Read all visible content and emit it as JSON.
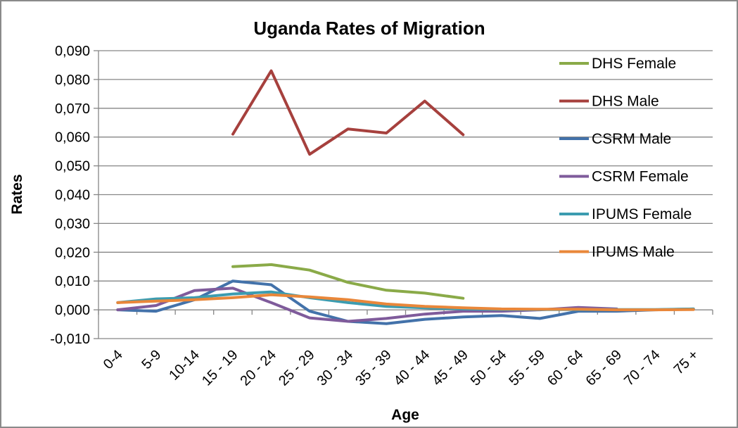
{
  "chart_data": {
    "type": "line",
    "title": "Uganda Rates of Migration",
    "xlabel": "Age",
    "ylabel": "Rates",
    "ylim": [
      -0.01,
      0.09
    ],
    "ytick_step": 0.01,
    "ytick_labels": [
      "-0,010",
      "0,000",
      "0,010",
      "0,020",
      "0,030",
      "0,040",
      "0,050",
      "0,060",
      "0,070",
      "0,080",
      "0,090"
    ],
    "grid": true,
    "legend_position": "right",
    "categories": [
      "0-4",
      "5-9",
      "10-14",
      "15 - 19",
      "20 - 24",
      "25 - 29",
      "30 - 34",
      "35 - 39",
      "40 - 44",
      "45 - 49",
      "50 - 54",
      "55 - 59",
      "60 - 64",
      "65 - 69",
      "70 - 74",
      "75 +"
    ],
    "series": [
      {
        "name": "DHS Female",
        "color": "#8aaa48",
        "values": [
          null,
          null,
          null,
          0.015,
          0.0157,
          0.0138,
          0.0095,
          0.0068,
          0.0058,
          0.004,
          null,
          null,
          null,
          null,
          null,
          null
        ]
      },
      {
        "name": "DHS Male",
        "color": "#a6403d",
        "values": [
          null,
          null,
          null,
          0.061,
          0.083,
          0.054,
          0.0628,
          0.0614,
          0.0725,
          0.0608,
          null,
          null,
          null,
          null,
          null,
          null
        ]
      },
      {
        "name": "CSRM Male",
        "color": "#4372aa",
        "values": [
          0.0,
          -0.0005,
          0.0035,
          0.01,
          0.0087,
          -0.0005,
          -0.004,
          -0.0048,
          -0.0033,
          -0.0025,
          -0.002,
          -0.003,
          -0.0005,
          -0.0005,
          0.0,
          0.0003
        ]
      },
      {
        "name": "CSRM Female",
        "color": "#7f5b9b",
        "values": [
          0.0,
          0.0015,
          0.0067,
          0.0075,
          0.0025,
          -0.0028,
          -0.004,
          -0.003,
          -0.0015,
          -0.0005,
          -0.0005,
          0.0,
          0.0008,
          0.0003,
          null,
          null
        ]
      },
      {
        "name": "IPUMS Female",
        "color": "#3c9cb0",
        "values": [
          0.0025,
          0.0038,
          0.0042,
          0.0055,
          0.0062,
          0.0042,
          0.0025,
          0.0012,
          0.0007,
          0.0003,
          0.0001,
          0.0001,
          0.0001,
          0.0001,
          0.0001,
          0.0003
        ]
      },
      {
        "name": "IPUMS Male",
        "color": "#e9873a",
        "values": [
          0.0025,
          0.003,
          0.0035,
          0.0042,
          0.0052,
          0.0045,
          0.0035,
          0.002,
          0.0012,
          0.0007,
          0.0003,
          0.0002,
          0.0002,
          0.0,
          0.0,
          0.0001
        ]
      }
    ]
  }
}
